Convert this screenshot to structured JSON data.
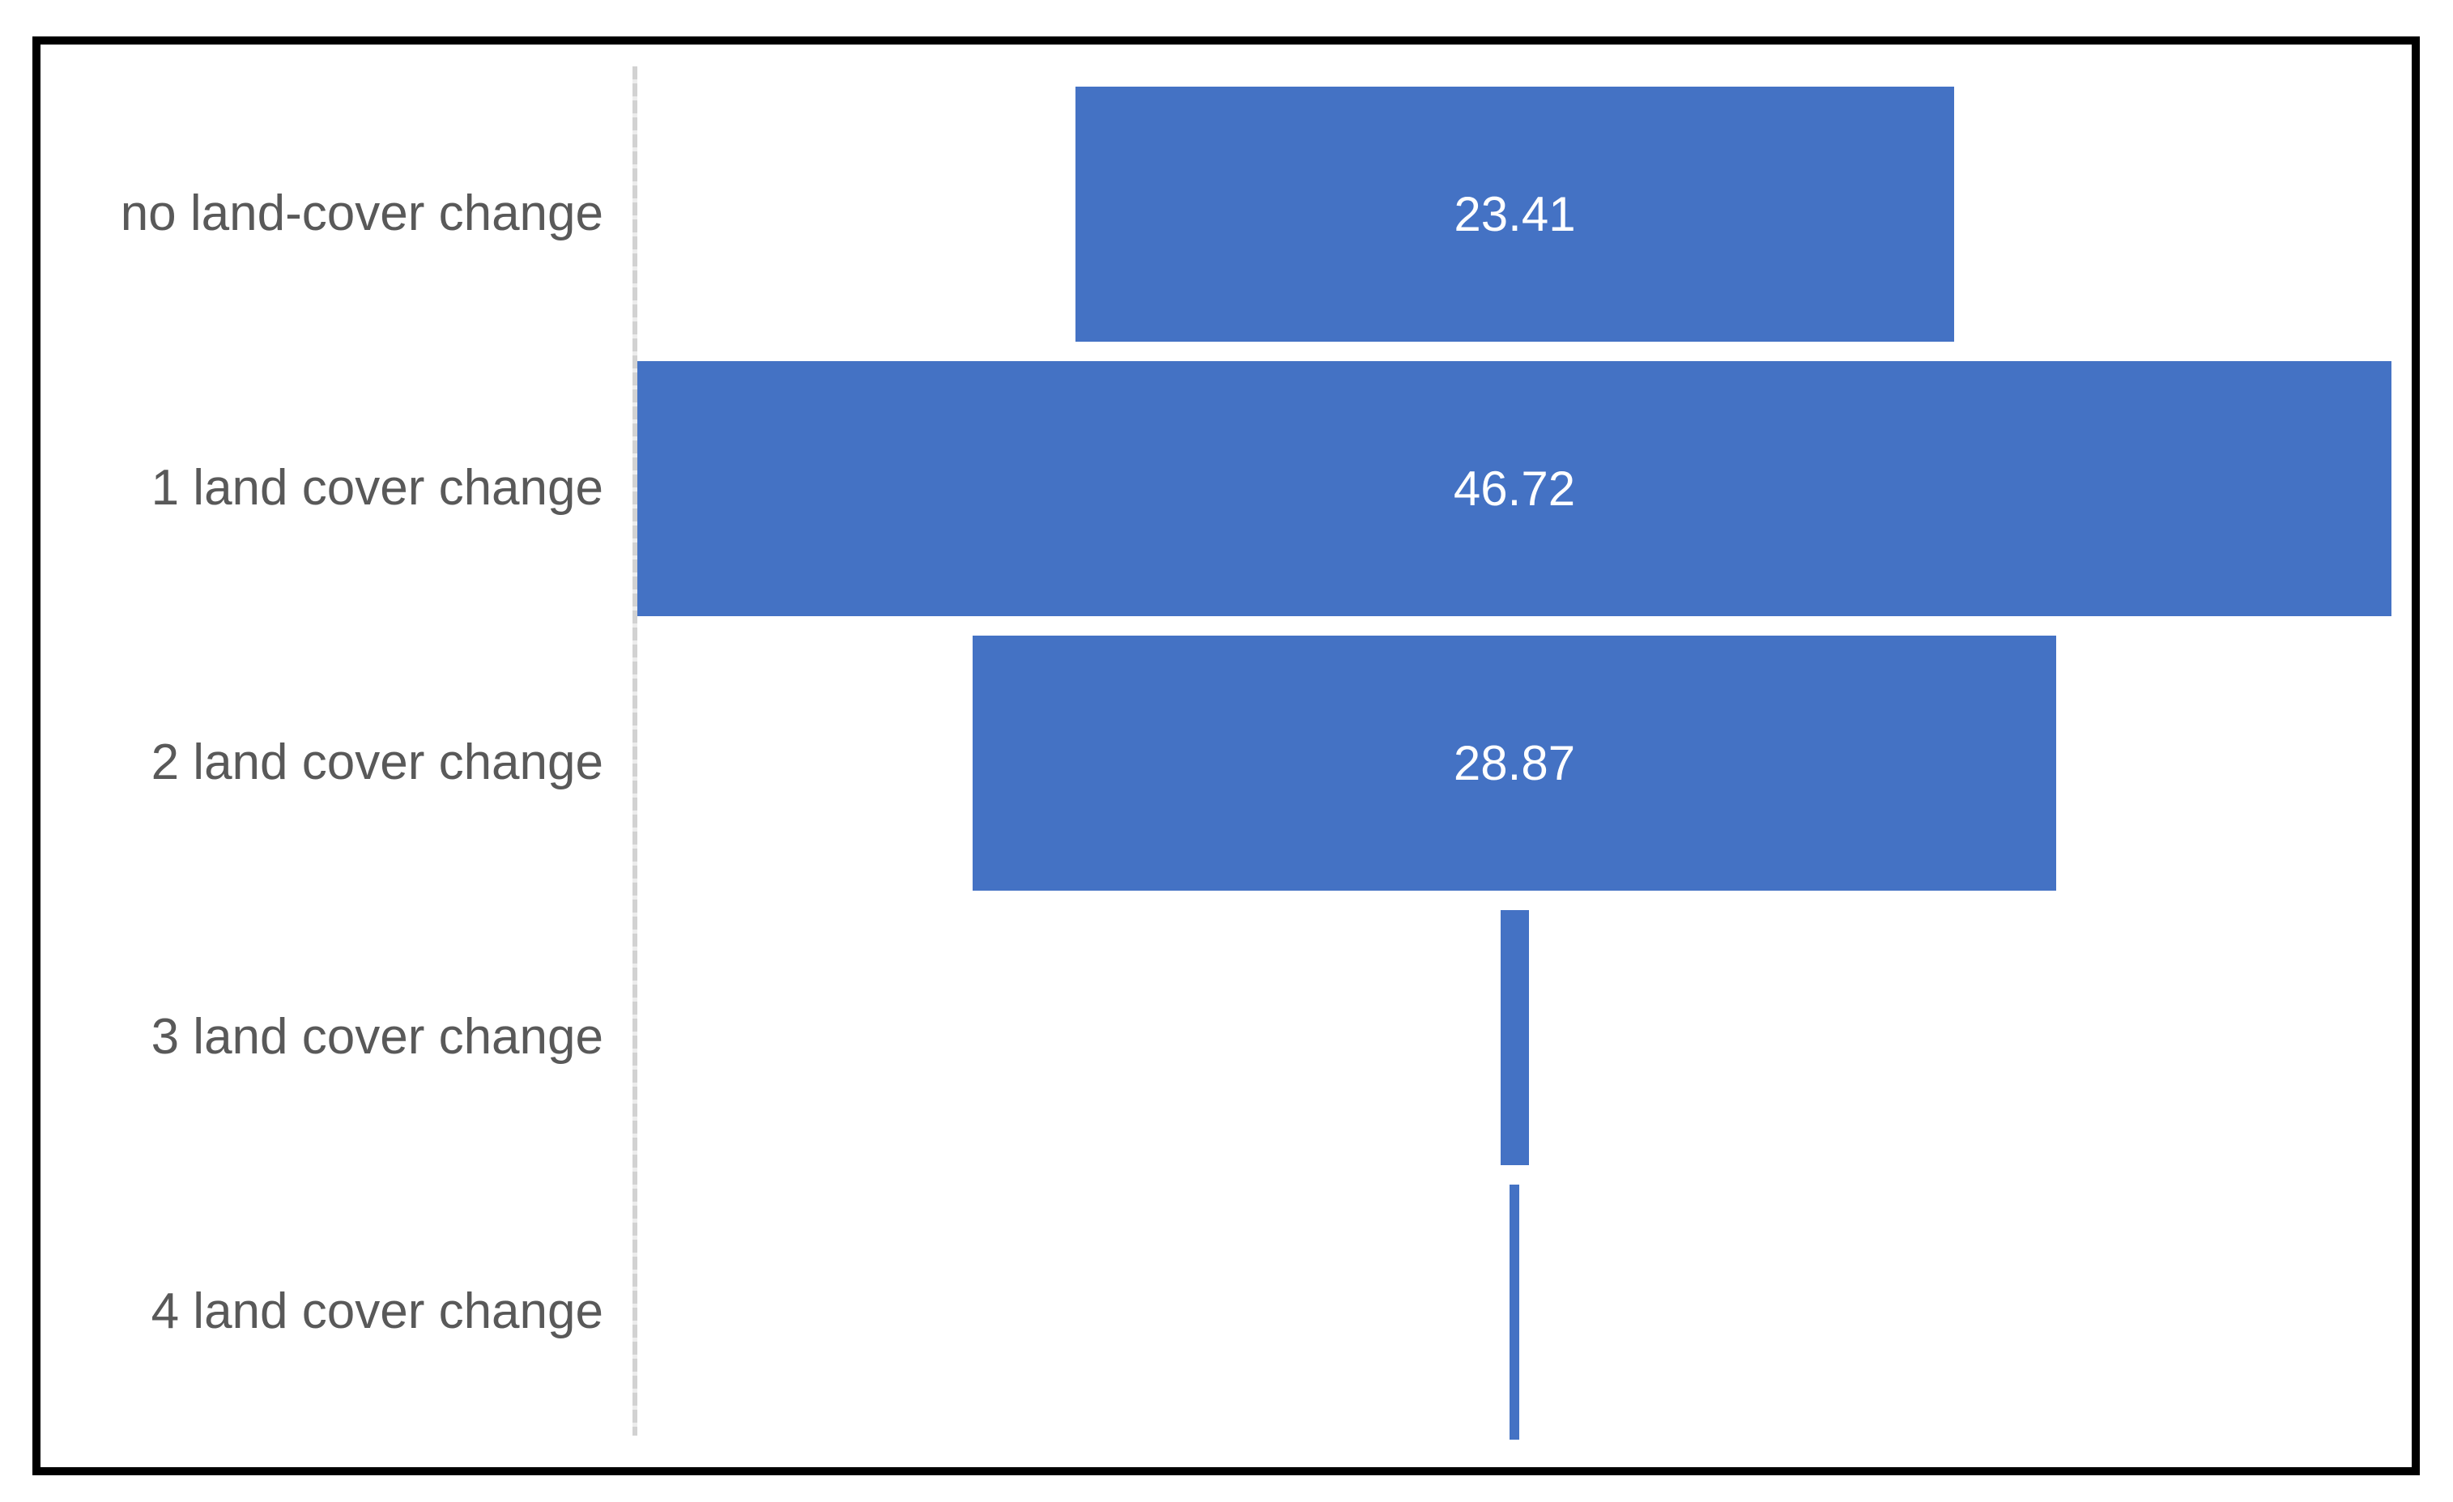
{
  "chart_data": {
    "type": "bar",
    "subtype": "funnel",
    "orientation": "horizontal-centered",
    "title": "",
    "xlabel": "",
    "ylabel": "",
    "legend_position": "none",
    "grid": false,
    "categories": [
      "no land-cover change",
      "1 land cover change",
      "2 land cover change",
      "3 land cover change",
      "4 land cover change"
    ],
    "values": [
      23.41,
      46.72,
      28.87,
      0.75,
      0.25
    ],
    "data_labels": [
      "23.41",
      "46.72",
      "28.87",
      "",
      ""
    ],
    "values_estimated_from_pixels": [
      false,
      false,
      false,
      true,
      true
    ],
    "bar_color": "#4472c4",
    "category_label_color": "#595959",
    "data_label_color": "#ffffff",
    "axis_line_color": "#d2d2d2",
    "frame_border_color": "#000000",
    "background_color": "#ffffff"
  }
}
